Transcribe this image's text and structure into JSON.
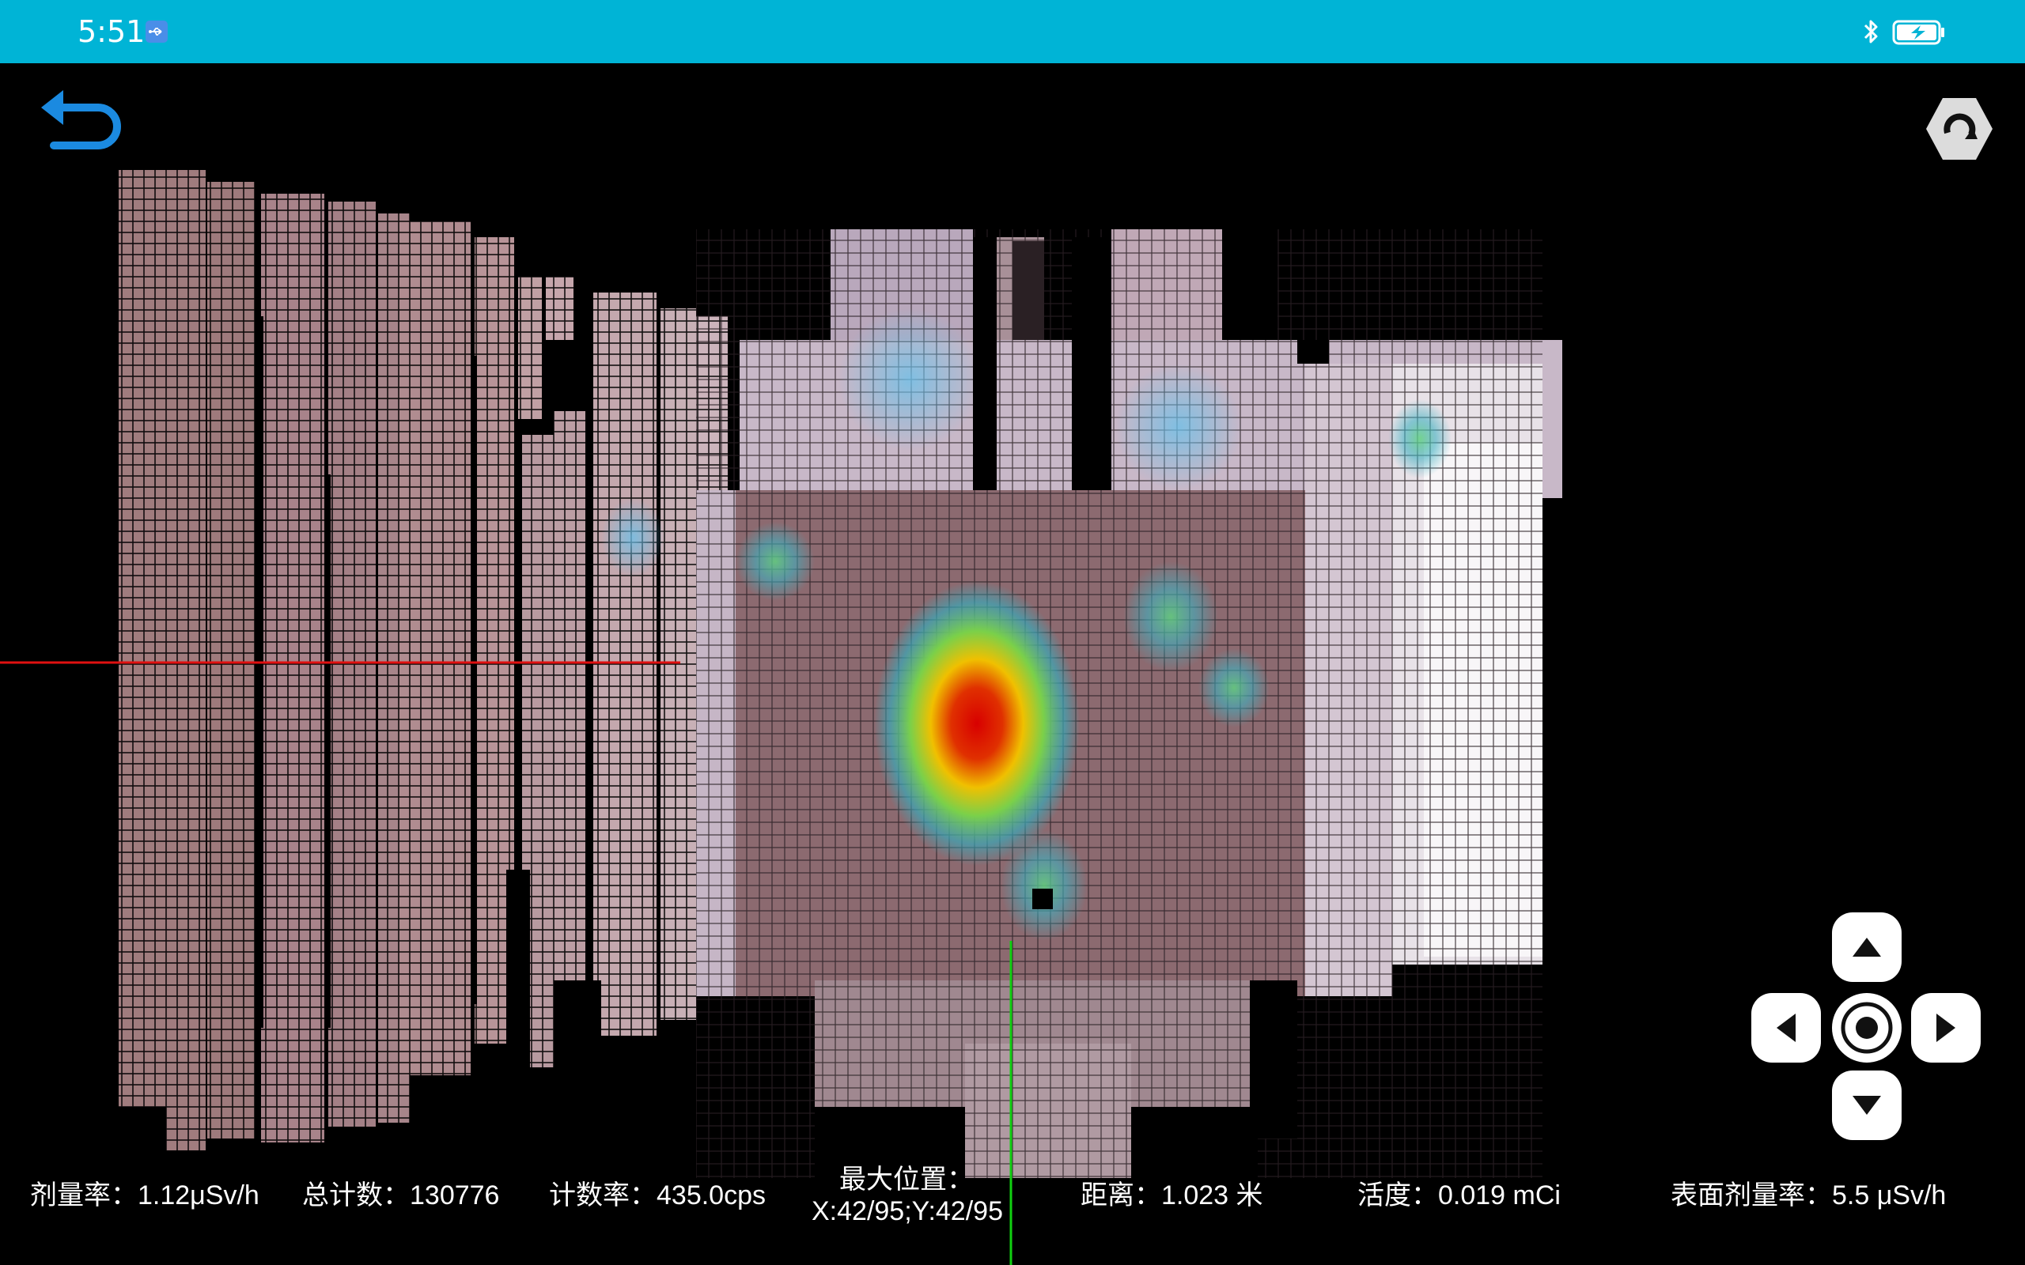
{
  "status_bar": {
    "time": "5:51",
    "icons": [
      "usb-icon",
      "bluetooth-icon",
      "battery-charging-icon"
    ]
  },
  "toolbar": {
    "back_icon": "back-arrow-icon",
    "settings_icon": "hex-refresh-icon"
  },
  "colors": {
    "status_bar": "#00b4d6",
    "accent_blue": "#1b8ae0",
    "crosshair_horizontal": "#e01010",
    "crosshair_vertical": "#10d010",
    "background": "#000000"
  },
  "dpad": {
    "up_icon": "arrow-up-icon",
    "left_icon": "arrow-left-icon",
    "center_icon": "center-target-icon",
    "right_icon": "arrow-right-icon",
    "down_icon": "arrow-down-icon"
  },
  "readouts": {
    "dose_rate": "剂量率：1.12μSv/h",
    "total_counts": "总计数：130776",
    "count_rate": "计数率：435.0cps",
    "max_position_label": "最大位置：",
    "max_position_value": "X:42/95;Y:42/95",
    "distance": "距离：1.023 米",
    "activity": "活度：0.019 mCi",
    "surface_dose_rate": "表面剂量率：5.5 μSv/h"
  }
}
